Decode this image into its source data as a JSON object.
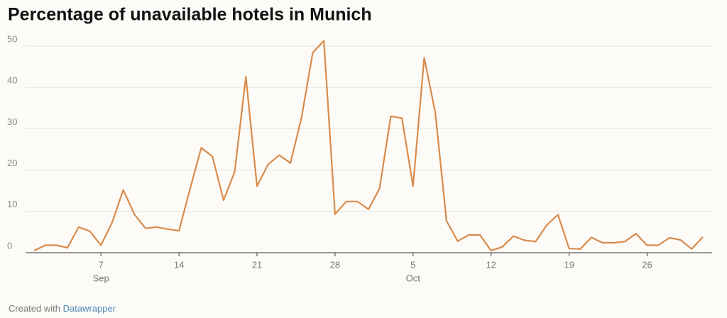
{
  "chart_data": {
    "type": "line",
    "title": "Percentage of unavailable hotels in Munich",
    "categories": [
      "Sep 1",
      "Sep 2",
      "Sep 3",
      "Sep 4",
      "Sep 5",
      "Sep 6",
      "Sep 7",
      "Sep 8",
      "Sep 9",
      "Sep 10",
      "Sep 11",
      "Sep 12",
      "Sep 13",
      "Sep 14",
      "Sep 15",
      "Sep 16",
      "Sep 17",
      "Sep 18",
      "Sep 19",
      "Sep 20",
      "Sep 21",
      "Sep 22",
      "Sep 23",
      "Sep 24",
      "Sep 25",
      "Sep 26",
      "Sep 27",
      "Sep 28",
      "Sep 29",
      "Sep 30",
      "Oct 1",
      "Oct 2",
      "Oct 3",
      "Oct 4",
      "Oct 5",
      "Oct 6",
      "Oct 7",
      "Oct 8",
      "Oct 9",
      "Oct 10",
      "Oct 11",
      "Oct 12",
      "Oct 13",
      "Oct 14",
      "Oct 15",
      "Oct 16",
      "Oct 17",
      "Oct 18",
      "Oct 19",
      "Oct 20",
      "Oct 21",
      "Oct 22",
      "Oct 23",
      "Oct 24",
      "Oct 25",
      "Oct 26",
      "Oct 27",
      "Oct 28",
      "Oct 29",
      "Oct 30",
      "Oct 31"
    ],
    "values": [
      0.5,
      1.8,
      1.8,
      1.2,
      6.2,
      5.2,
      1.8,
      7.3,
      15.2,
      9.3,
      5.9,
      6.2,
      5.7,
      5.3,
      15.5,
      25.4,
      23.3,
      12.7,
      19.6,
      42.6,
      16.1,
      21.4,
      23.6,
      21.7,
      32.8,
      48.4,
      51.3,
      9.3,
      12.4,
      12.4,
      10.5,
      15.6,
      33.0,
      32.6,
      16.1,
      47.2,
      33.8,
      7.7,
      2.8,
      4.3,
      4.3,
      0.5,
      1.4,
      4.0,
      3.0,
      2.7,
      6.7,
      9.2,
      1.0,
      0.9,
      3.7,
      2.4,
      2.4,
      2.7,
      4.6,
      1.8,
      1.8,
      3.6,
      3.1,
      0.9,
      3.8
    ],
    "color": "#d98b4c",
    "ylim": [
      0,
      50
    ],
    "yticks": [
      0,
      10,
      20,
      30,
      40,
      50
    ],
    "grid": true,
    "xticks": [
      {
        "value": "Sep 7",
        "label": "7"
      },
      {
        "value": "Sep 14",
        "label": "14"
      },
      {
        "value": "Sep 21",
        "label": "21"
      },
      {
        "value": "Sep 28",
        "label": "28"
      },
      {
        "value": "Oct 5",
        "label": "5"
      },
      {
        "value": "Oct 12",
        "label": "12"
      },
      {
        "value": "Oct 19",
        "label": "19"
      },
      {
        "value": "Oct 26",
        "label": "26"
      }
    ],
    "month_labels": [
      {
        "value": "Sep 7",
        "label": "Sep"
      },
      {
        "value": "Oct 5",
        "label": "Oct"
      }
    ]
  },
  "footer": {
    "prefix": "Created with",
    "link": "Datawrapper"
  }
}
